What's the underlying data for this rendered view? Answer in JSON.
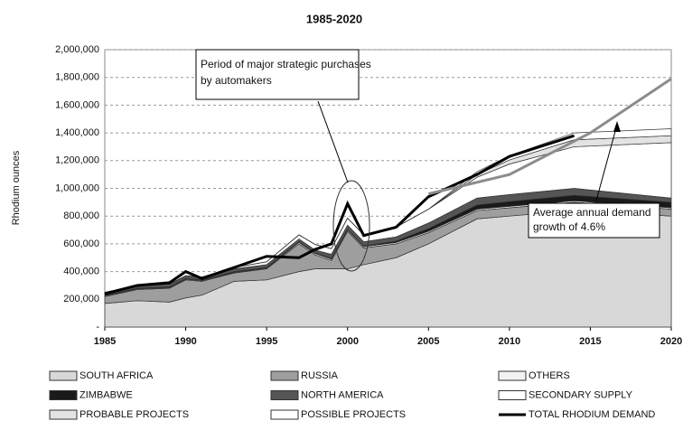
{
  "chart_data": {
    "type": "stacked_area",
    "title": "1985-2020",
    "y_label": "Rhodium ounces",
    "xlim": [
      1985,
      2020
    ],
    "xticks": [
      1985,
      1990,
      1995,
      2000,
      2005,
      2010,
      2015,
      2020
    ],
    "ylim": [
      0,
      2000000
    ],
    "yticks": [
      {
        "value": 0,
        "label": "-"
      },
      {
        "value": 200000,
        "label": "200,000"
      },
      {
        "value": 400000,
        "label": "400,000"
      },
      {
        "value": 600000,
        "label": "600,000"
      },
      {
        "value": 800000,
        "label": "800,000"
      },
      {
        "value": 1000000,
        "label": "1,000,000"
      },
      {
        "value": 1200000,
        "label": "1,200,000"
      },
      {
        "value": 1400000,
        "label": "1,400,000"
      },
      {
        "value": 1600000,
        "label": "1,600,000"
      },
      {
        "value": 1800000,
        "label": "1,800,000"
      },
      {
        "value": 2000000,
        "label": "2,000,000"
      }
    ],
    "grid": true,
    "x": [
      1985,
      1987,
      1989,
      1990,
      1991,
      1993,
      1995,
      1997,
      1998,
      1999,
      2000,
      2001,
      2003,
      2005,
      2008,
      2010,
      2014,
      2020
    ],
    "series": [
      {
        "name": "SOUTH AFRICA",
        "color": "#d8d8d8",
        "values": [
          170000,
          190000,
          180000,
          210000,
          230000,
          330000,
          340000,
          400000,
          420000,
          420000,
          420000,
          450000,
          500000,
          600000,
          780000,
          800000,
          840000,
          800000
        ]
      },
      {
        "name": "RUSSIA",
        "color": "#9e9e9e",
        "values": [
          50000,
          80000,
          100000,
          130000,
          100000,
          60000,
          80000,
          200000,
          100000,
          60000,
          270000,
          120000,
          100000,
          80000,
          60000,
          60000,
          60000,
          50000
        ]
      },
      {
        "name": "OTHERS",
        "color": "#f2f2f2",
        "values": [
          5000,
          5000,
          5000,
          5000,
          5000,
          5000,
          5000,
          10000,
          10000,
          10000,
          10000,
          10000,
          10000,
          10000,
          10000,
          10000,
          10000,
          10000
        ]
      },
      {
        "name": "ZIMBABWE",
        "color": "#1a1a1a",
        "values": [
          5000,
          5000,
          5000,
          5000,
          5000,
          5000,
          5000,
          5000,
          5000,
          5000,
          5000,
          5000,
          10000,
          20000,
          30000,
          35000,
          40000,
          40000
        ]
      },
      {
        "name": "NORTH AMERICA",
        "color": "#555555",
        "values": [
          20000,
          20000,
          20000,
          20000,
          20000,
          20000,
          20000,
          20000,
          20000,
          30000,
          30000,
          30000,
          30000,
          40000,
          50000,
          50000,
          50000,
          30000
        ]
      },
      {
        "name": "SECONDARY SUPPLY",
        "color": "#ffffff",
        "values": [
          0,
          0,
          0,
          0,
          0,
          10000,
          20000,
          30000,
          40000,
          40000,
          50000,
          50000,
          70000,
          100000,
          150000,
          220000,
          300000,
          400000
        ]
      },
      {
        "name": "PROBABLE PROJECTS",
        "color": "#e3e3e3",
        "values": [
          0,
          0,
          0,
          0,
          0,
          0,
          0,
          0,
          0,
          0,
          0,
          0,
          0,
          0,
          20000,
          30000,
          50000,
          50000
        ]
      },
      {
        "name": "POSSIBLE PROJECTS",
        "color": "#ffffff",
        "values": [
          0,
          0,
          0,
          0,
          0,
          0,
          0,
          0,
          0,
          0,
          0,
          0,
          0,
          0,
          20000,
          30000,
          50000,
          50000
        ]
      }
    ],
    "lines": [
      {
        "name": "TOTAL RHODIUM DEMAND",
        "color": "#000000",
        "values": [
          240000,
          300000,
          320000,
          400000,
          350000,
          430000,
          510000,
          500000,
          560000,
          600000,
          890000,
          660000,
          720000,
          940000,
          1100000,
          1230000,
          1380000,
          null
        ]
      }
    ],
    "trend": {
      "color": "#8c8c8c",
      "x": [
        2005,
        2010,
        2015,
        2020
      ],
      "values": [
        960000,
        1100000,
        1400000,
        1790000
      ]
    },
    "annotations": [
      "Period of major strategic purchases by automakers",
      "Average annual demand growth of 4.6%"
    ]
  }
}
